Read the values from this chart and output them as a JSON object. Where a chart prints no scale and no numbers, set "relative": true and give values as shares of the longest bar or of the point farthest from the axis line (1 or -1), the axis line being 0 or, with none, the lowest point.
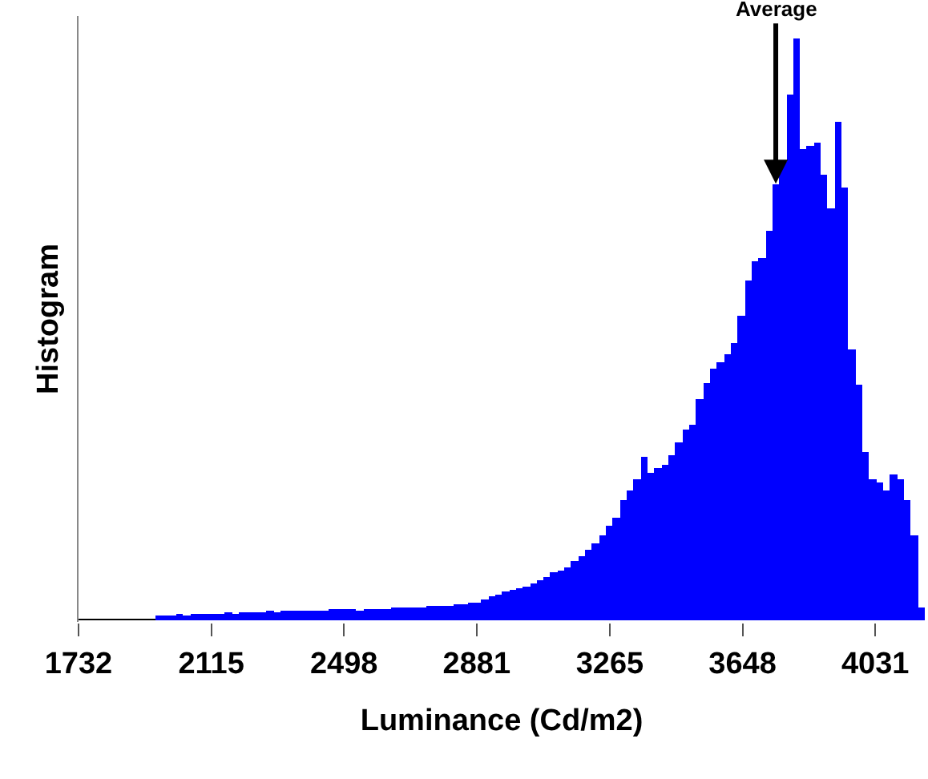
{
  "chart_data": {
    "type": "bar",
    "relative": true,
    "xlabel": "Luminance (Cd/m2)",
    "ylabel": "Histogram",
    "color": "#0000ff",
    "xlim": [
      1732,
      4174
    ],
    "xticks": [
      1732,
      2115,
      2498,
      2881,
      3265,
      3648,
      4031
    ],
    "x": [
      1964,
      1984,
      2004,
      2024,
      2044,
      2064,
      2084,
      2104,
      2124,
      2144,
      2164,
      2184,
      2204,
      2224,
      2244,
      2264,
      2284,
      2304,
      2324,
      2344,
      2364,
      2384,
      2404,
      2424,
      2444,
      2464,
      2484,
      2504,
      2524,
      2544,
      2564,
      2584,
      2604,
      2624,
      2644,
      2664,
      2684,
      2704,
      2724,
      2744,
      2764,
      2784,
      2804,
      2824,
      2844,
      2864,
      2884,
      2904,
      2924,
      2944,
      2964,
      2984,
      3004,
      3024,
      3044,
      3064,
      3084,
      3104,
      3124,
      3144,
      3164,
      3184,
      3204,
      3224,
      3244,
      3264,
      3284,
      3304,
      3324,
      3344,
      3364,
      3384,
      3404,
      3424,
      3444,
      3464,
      3484,
      3504,
      3524,
      3544,
      3564,
      3584,
      3604,
      3624,
      3644,
      3664,
      3684,
      3704,
      3724,
      3744,
      3764,
      3784,
      3804,
      3824,
      3844,
      3864,
      3884,
      3904,
      3924,
      3944,
      3964,
      3984,
      4004,
      4024,
      4044,
      4064,
      4084,
      4104,
      4124,
      4144,
      4164
    ],
    "values": [
      0.006,
      0.007,
      0.008,
      0.009,
      0.008,
      0.009,
      0.01,
      0.009,
      0.01,
      0.011,
      0.012,
      0.011,
      0.012,
      0.013,
      0.012,
      0.013,
      0.014,
      0.013,
      0.014,
      0.015,
      0.014,
      0.015,
      0.016,
      0.015,
      0.016,
      0.017,
      0.018,
      0.017,
      0.018,
      0.015,
      0.018,
      0.019,
      0.018,
      0.019,
      0.021,
      0.02,
      0.021,
      0.022,
      0.021,
      0.024,
      0.023,
      0.024,
      0.025,
      0.027,
      0.026,
      0.028,
      0.03,
      0.036,
      0.04,
      0.043,
      0.049,
      0.052,
      0.055,
      0.058,
      0.061,
      0.067,
      0.073,
      0.082,
      0.085,
      0.091,
      0.1,
      0.109,
      0.119,
      0.131,
      0.146,
      0.161,
      0.176,
      0.207,
      0.222,
      0.243,
      0.28,
      0.252,
      0.261,
      0.267,
      0.283,
      0.304,
      0.328,
      0.337,
      0.38,
      0.407,
      0.432,
      0.444,
      0.456,
      0.477,
      0.523,
      0.584,
      0.617,
      0.623,
      0.669,
      0.751,
      0.79,
      0.906,
      1,
      0.812,
      0.815,
      0.821,
      0.766,
      0.708,
      0.857,
      0.745,
      0.465,
      0.404,
      0.289,
      0.243,
      0.237,
      0.222,
      0.249,
      0.243,
      0.207,
      0.146,
      0.021
    ],
    "annotations": [
      {
        "text": "Average",
        "x": 3744,
        "y": 0.751
      }
    ]
  }
}
